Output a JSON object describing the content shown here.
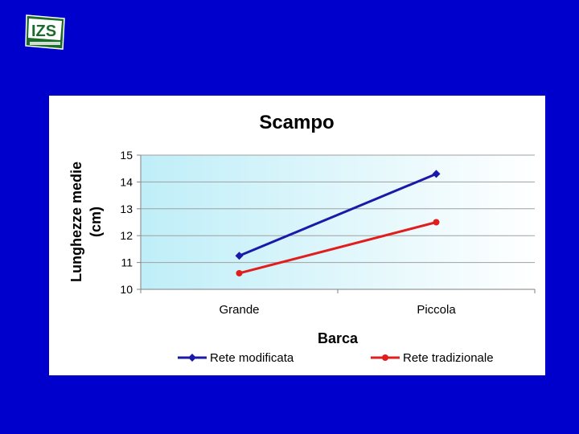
{
  "logo": {
    "text": "IZS"
  },
  "chart_data": {
    "type": "line",
    "title": "Scampo",
    "xlabel": "Barca",
    "ylabel_lines": [
      "Lunghezze medie",
      "(cm)"
    ],
    "categories": [
      "Grande",
      "Piccola"
    ],
    "ylim": [
      10,
      15
    ],
    "yticks": [
      10,
      11,
      12,
      13,
      14,
      15
    ],
    "grid": true,
    "legend": "bottom",
    "series": [
      {
        "name": "Rete modificata",
        "values": [
          11.25,
          14.3
        ],
        "color": "#1a1aa8",
        "marker": "diamond"
      },
      {
        "name": "Rete tradizionale",
        "values": [
          10.6,
          12.5
        ],
        "color": "#e01e1e",
        "marker": "circle"
      }
    ]
  }
}
